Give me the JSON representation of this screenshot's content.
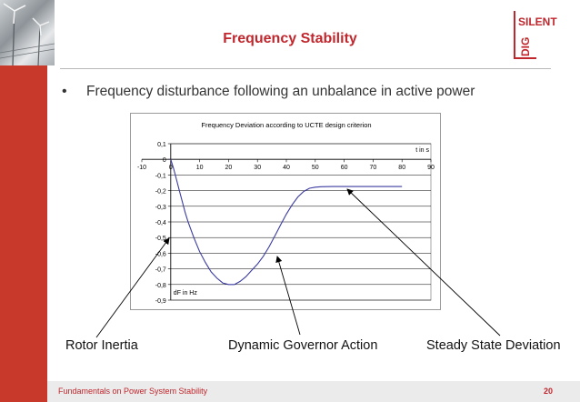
{
  "slide": {
    "title": "Frequency Stability",
    "bullet": "Frequency disturbance following an unbalance in active power",
    "footer": "Fundamentals on Power System Stability",
    "page_number": "20"
  },
  "logo": {
    "line1": "SILENT",
    "line2": "DIG"
  },
  "annotations": {
    "rotor": "Rotor Inertia",
    "governor": "Dynamic Governor Action",
    "steady": "Steady State Deviation"
  },
  "colors": {
    "accent": "#c0272d",
    "curve": "#3b3ba0"
  },
  "chart_data": {
    "type": "line",
    "title": "Frequency Deviation according to UCTE design criterion",
    "xlabel": "t in s",
    "ylabel": "dF in Hz",
    "xlim": [
      -10,
      90
    ],
    "ylim": [
      -0.9,
      0.1
    ],
    "x_ticks": [
      "-10",
      "0",
      "10",
      "20",
      "30",
      "40",
      "50",
      "60",
      "70",
      "80",
      "90"
    ],
    "y_ticks": [
      "0,1",
      "0",
      "-0,1",
      "-0,2",
      "-0,3",
      "-0,4",
      "-0,5",
      "-0,6",
      "-0,7",
      "-0,8",
      "-0,9"
    ],
    "grid": true,
    "series": [
      {
        "x": [
          0,
          1,
          2,
          3,
          4,
          5,
          6,
          8,
          10,
          12,
          14,
          16,
          18,
          20,
          22,
          24,
          26,
          28,
          30,
          32,
          34,
          36,
          38,
          40,
          42,
          44,
          46,
          48,
          50,
          52,
          56,
          60,
          70,
          80
        ],
        "y": [
          0,
          -0.06,
          -0.13,
          -0.2,
          -0.27,
          -0.34,
          -0.4,
          -0.5,
          -0.59,
          -0.66,
          -0.72,
          -0.76,
          -0.79,
          -0.8,
          -0.8,
          -0.78,
          -0.75,
          -0.71,
          -0.67,
          -0.62,
          -0.56,
          -0.49,
          -0.42,
          -0.35,
          -0.29,
          -0.24,
          -0.205,
          -0.185,
          -0.178,
          -0.175,
          -0.174,
          -0.174,
          -0.174,
          -0.174
        ]
      }
    ]
  }
}
